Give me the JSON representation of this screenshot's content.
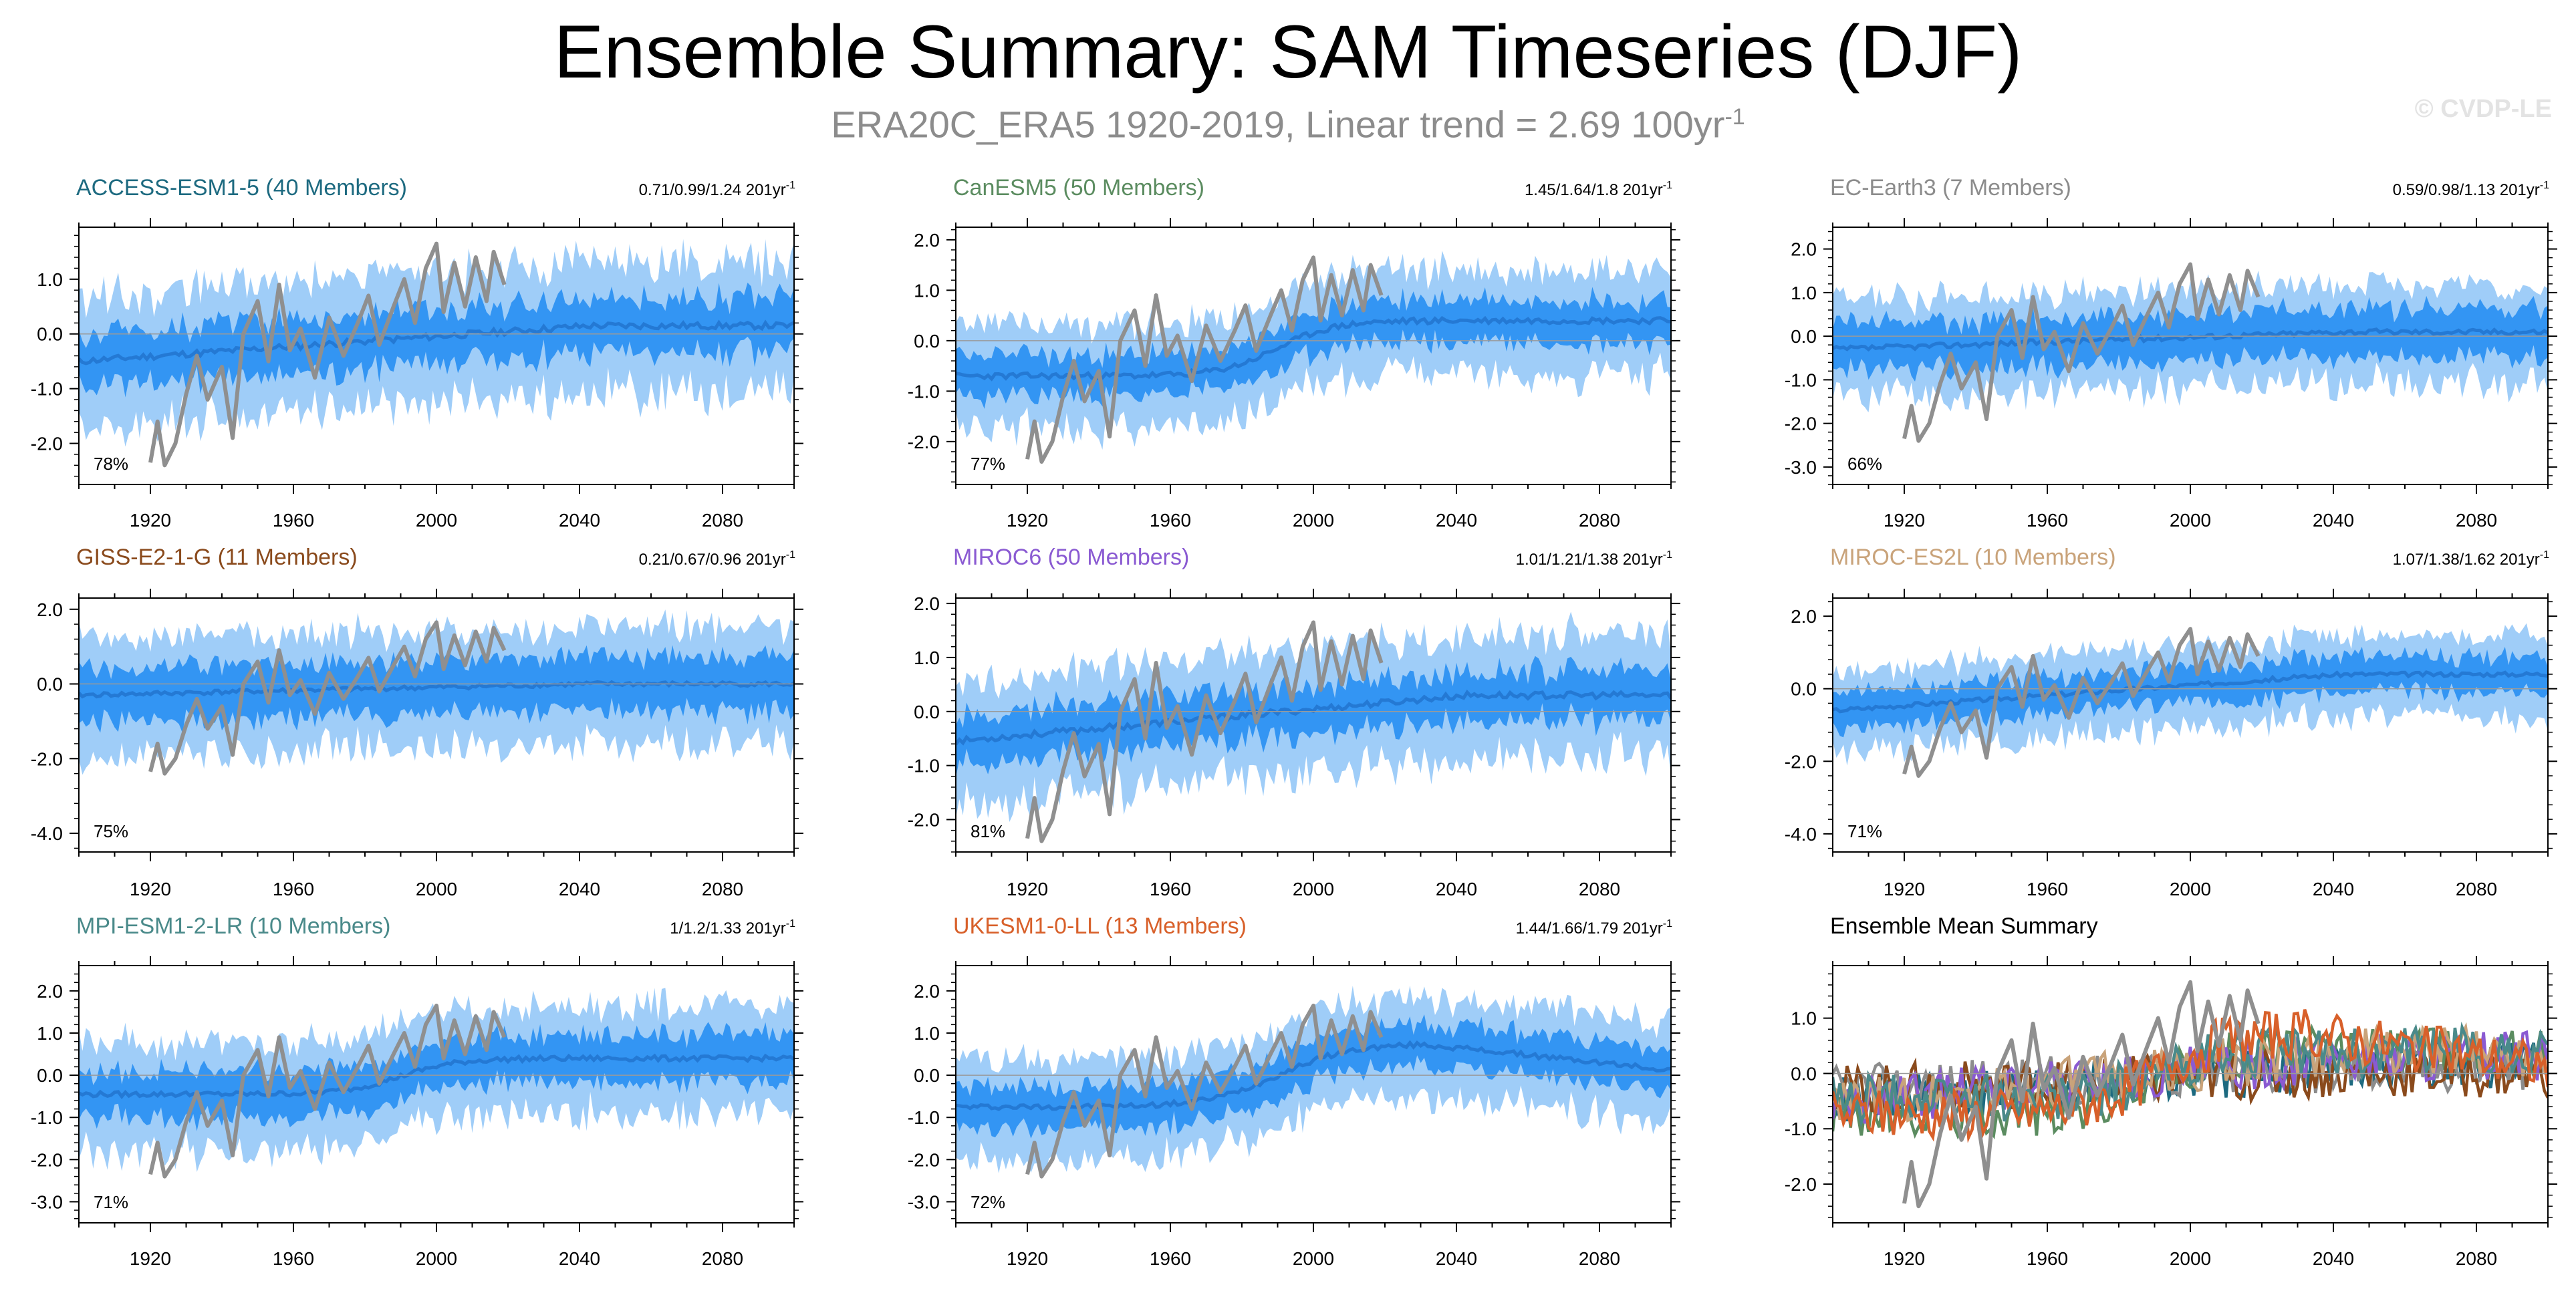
{
  "title": "Ensemble Summary: SAM Timeseries (DJF)",
  "subtitle": {
    "text": "ERA20C_ERA5 1920-2019, Linear trend = 2.69 100yr",
    "superscript": "-1"
  },
  "copyright": "© CVDP-LE",
  "colors": {
    "obs": "#8f8f8f",
    "band_outer": "#9fcdf8",
    "band_inner": "#3395f3",
    "mean": "#2479d4"
  },
  "chart_data": [
    {
      "type": "area",
      "title": "ACCESS-ESM1-5 (40 Members)",
      "title_color": "#1d6a80",
      "trend": "0.71/0.99/1.24 201yr",
      "trend_sup": "-1",
      "percent": "78%",
      "yticks": [
        1.0,
        0.0,
        -1.0,
        -2.0
      ],
      "ytick_labels": [
        "1.0",
        "0.0",
        "-1.0",
        "-2.0"
      ],
      "ylim": [
        -2.75,
        1.95
      ],
      "xlim": [
        1900,
        2100
      ],
      "xticks": [
        1920,
        1960,
        2000,
        2040,
        2080
      ],
      "mean_start": -0.5,
      "mean_end": 0.15,
      "mean_shape": "gradual",
      "band_inner": 0.55,
      "band_outer": 1.15,
      "seed": 11
    },
    {
      "type": "area",
      "title": "CanESM5 (50 Members)",
      "title_color": "#5b8c60",
      "trend": "1.45/1.64/1.8 201yr",
      "trend_sup": "-1",
      "percent": "77%",
      "yticks": [
        2.0,
        1.0,
        0.0,
        -1.0,
        -2.0
      ],
      "ytick_labels": [
        "2.0",
        "1.0",
        "0.0",
        "-1.0",
        "-2.0"
      ],
      "ylim": [
        -2.85,
        2.25
      ],
      "xlim": [
        1900,
        2100
      ],
      "xticks": [
        1920,
        1960,
        2000,
        2040,
        2080
      ],
      "mean_start": -0.7,
      "mean_end": 0.4,
      "mean_shape": "step",
      "band_inner": 0.45,
      "band_outer": 1.0,
      "seed": 23
    },
    {
      "type": "area",
      "title": "EC-Earth3 (7 Members)",
      "title_color": "#8c8c8c",
      "trend": "0.59/0.98/1.13 201yr",
      "trend_sup": "-1",
      "percent": "66%",
      "yticks": [
        2.0,
        1.0,
        0.0,
        -1.0,
        -2.0,
        -3.0
      ],
      "ytick_labels": [
        "2.0",
        "1.0",
        "0.0",
        "-1.0",
        "-2.0",
        "-3.0"
      ],
      "ylim": [
        -3.4,
        2.5
      ],
      "xlim": [
        1900,
        2100
      ],
      "xticks": [
        1920,
        1960,
        2000,
        2040,
        2080
      ],
      "mean_start": -0.3,
      "mean_end": 0.1,
      "mean_shape": "gradual",
      "band_inner": 0.6,
      "band_outer": 1.1,
      "seed": 37
    },
    {
      "type": "area",
      "title": "GISS-E2-1-G (11 Members)",
      "title_color": "#8a4a1c",
      "trend": "0.21/0.67/0.96 201yr",
      "trend_sup": "-1",
      "percent": "75%",
      "yticks": [
        2.0,
        0.0,
        -2.0,
        -4.0
      ],
      "ytick_labels": [
        "2.0",
        "0.0",
        "-2.0",
        "-4.0"
      ],
      "ylim": [
        -4.5,
        2.3
      ],
      "xlim": [
        1900,
        2100
      ],
      "xticks": [
        1920,
        1960,
        2000,
        2040,
        2080
      ],
      "mean_start": -0.3,
      "mean_end": 0.0,
      "mean_shape": "gradual",
      "band_inner": 0.8,
      "band_outer": 1.5,
      "seed": 41
    },
    {
      "type": "area",
      "title": "MIROC6 (50 Members)",
      "title_color": "#8a5ad2",
      "trend": "1.01/1.21/1.38 201yr",
      "trend_sup": "-1",
      "percent": "81%",
      "yticks": [
        2.0,
        1.0,
        0.0,
        -1.0,
        -2.0
      ],
      "ytick_labels": [
        "2.0",
        "1.0",
        "0.0",
        "-1.0",
        "-2.0"
      ],
      "ylim": [
        -2.6,
        2.1
      ],
      "xlim": [
        1900,
        2100
      ],
      "xticks": [
        1920,
        1960,
        2000,
        2040,
        2080
      ],
      "mean_start": -0.55,
      "mean_end": 0.3,
      "mean_shape": "gradual",
      "band_inner": 0.5,
      "band_outer": 1.1,
      "seed": 53
    },
    {
      "type": "area",
      "title": "MIROC-ES2L (10 Members)",
      "title_color": "#c9a37a",
      "trend": "1.07/1.38/1.62 201yr",
      "trend_sup": "-1",
      "percent": "71%",
      "yticks": [
        2.0,
        0.0,
        -2.0,
        -4.0
      ],
      "ytick_labels": [
        "2.0",
        "0.0",
        "-2.0",
        "-4.0"
      ],
      "ylim": [
        -4.5,
        2.5
      ],
      "xlim": [
        1900,
        2100
      ],
      "xticks": [
        1920,
        1960,
        2000,
        2040,
        2080
      ],
      "mean_start": -0.6,
      "mean_end": 0.4,
      "mean_shape": "gradual",
      "band_inner": 0.55,
      "band_outer": 1.1,
      "seed": 67
    },
    {
      "type": "area",
      "title": "MPI-ESM1-2-LR (10 Members)",
      "title_color": "#4a8a8a",
      "trend": "1/1.2/1.33 201yr",
      "trend_sup": "-1",
      "percent": "71%",
      "yticks": [
        2.0,
        1.0,
        0.0,
        -1.0,
        -2.0,
        -3.0
      ],
      "ytick_labels": [
        "2.0",
        "1.0",
        "0.0",
        "-1.0",
        "-2.0",
        "-3.0"
      ],
      "ylim": [
        -3.5,
        2.6
      ],
      "xlim": [
        1900,
        2100
      ],
      "xticks": [
        1920,
        1960,
        2000,
        2040,
        2080
      ],
      "mean_start": -0.45,
      "mean_end": 0.4,
      "mean_shape": "step",
      "band_inner": 0.6,
      "band_outer": 1.25,
      "seed": 79
    },
    {
      "type": "area",
      "title": "UKESM1-0-LL (13 Members)",
      "title_color": "#d8602a",
      "trend": "1.44/1.66/1.79 201yr",
      "trend_sup": "-1",
      "percent": "72%",
      "yticks": [
        2.0,
        1.0,
        0.0,
        -1.0,
        -2.0,
        -3.0
      ],
      "ytick_labels": [
        "2.0",
        "1.0",
        "0.0",
        "-1.0",
        "-2.0",
        "-3.0"
      ],
      "ylim": [
        -3.5,
        2.6
      ],
      "xlim": [
        1900,
        2100
      ],
      "xticks": [
        1920,
        1960,
        2000,
        2040,
        2080
      ],
      "mean_start": -0.75,
      "mean_end": 0.1,
      "mean_shape": "hump",
      "band_inner": 0.55,
      "band_outer": 1.15,
      "seed": 97
    },
    {
      "type": "line",
      "title": "Ensemble Mean Summary",
      "title_color": "#000000",
      "yticks": [
        1.0,
        0.0,
        -1.0,
        -2.0
      ],
      "ytick_labels": [
        "1.0",
        "0.0",
        "-1.0",
        "-2.0"
      ],
      "ylim": [
        -2.7,
        1.95
      ],
      "xlim": [
        1900,
        2100
      ],
      "xticks": [
        1920,
        1960,
        2000,
        2040,
        2080
      ],
      "series": [
        {
          "name": "ACCESS-ESM1-5",
          "color": "#1d6a80",
          "mean_start": -0.5,
          "mean_end": 0.15,
          "mean_shape": "gradual",
          "seed": 11
        },
        {
          "name": "CanESM5",
          "color": "#5b8c60",
          "mean_start": -0.7,
          "mean_end": 0.4,
          "mean_shape": "step",
          "seed": 23
        },
        {
          "name": "EC-Earth3",
          "color": "#8c8c8c",
          "mean_start": -0.3,
          "mean_end": 0.1,
          "mean_shape": "gradual",
          "seed": 37
        },
        {
          "name": "GISS-E2-1-G",
          "color": "#8a4a1c",
          "mean_start": -0.3,
          "mean_end": 0.0,
          "mean_shape": "gradual",
          "seed": 41
        },
        {
          "name": "MIROC6",
          "color": "#8a5ad2",
          "mean_start": -0.55,
          "mean_end": 0.3,
          "mean_shape": "gradual",
          "seed": 53
        },
        {
          "name": "MIROC-ES2L",
          "color": "#c9a37a",
          "mean_start": -0.6,
          "mean_end": 0.4,
          "mean_shape": "gradual",
          "seed": 67
        },
        {
          "name": "MPI-ESM1-2-LR",
          "color": "#4a8a8a",
          "mean_start": -0.45,
          "mean_end": 0.4,
          "mean_shape": "step",
          "seed": 79
        },
        {
          "name": "UKESM1-0-LL",
          "color": "#d8602a",
          "mean_start": -0.75,
          "mean_end": 0.1,
          "mean_shape": "hump",
          "seed": 97
        }
      ]
    }
  ],
  "observations": {
    "name": "ERA20C_ERA5",
    "years": [
      1920,
      2019
    ],
    "keypoints": [
      [
        1920,
        -2.35
      ],
      [
        1922,
        -1.6
      ],
      [
        1924,
        -2.4
      ],
      [
        1927,
        -2.0
      ],
      [
        1930,
        -1.1
      ],
      [
        1933,
        -0.4
      ],
      [
        1936,
        -1.2
      ],
      [
        1940,
        -0.6
      ],
      [
        1943,
        -1.9
      ],
      [
        1946,
        0.0
      ],
      [
        1950,
        0.6
      ],
      [
        1953,
        -0.5
      ],
      [
        1956,
        0.9
      ],
      [
        1959,
        -0.3
      ],
      [
        1962,
        0.1
      ],
      [
        1966,
        -0.8
      ],
      [
        1970,
        0.3
      ],
      [
        1974,
        -0.4
      ],
      [
        1978,
        0.2
      ],
      [
        1981,
        0.7
      ],
      [
        1984,
        -0.2
      ],
      [
        1988,
        0.5
      ],
      [
        1991,
        1.0
      ],
      [
        1994,
        0.2
      ],
      [
        1997,
        1.2
      ],
      [
        2000,
        1.65
      ],
      [
        2002,
        0.4
      ],
      [
        2005,
        1.3
      ],
      [
        2008,
        0.5
      ],
      [
        2011,
        1.4
      ],
      [
        2014,
        0.6
      ],
      [
        2016,
        1.5
      ],
      [
        2019,
        0.9
      ]
    ]
  }
}
